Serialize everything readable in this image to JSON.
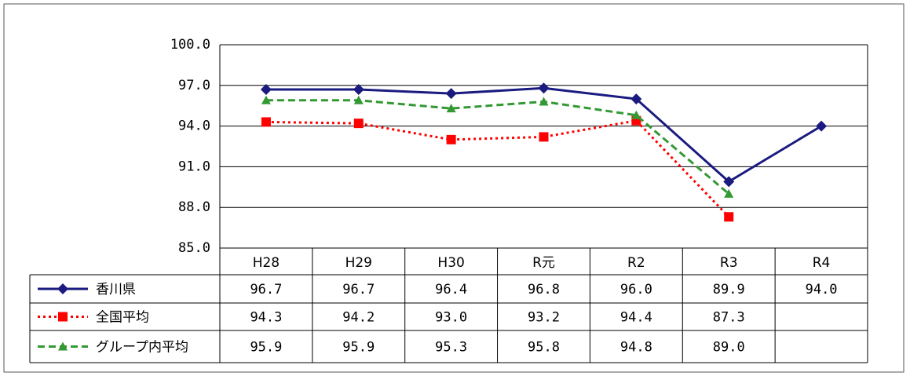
{
  "chart_data": {
    "type": "line",
    "categories": [
      "H28",
      "H29",
      "H30",
      "R元",
      "R2",
      "R3",
      "R4"
    ],
    "series": [
      {
        "name": "香川県",
        "color": "#1a1a80",
        "marker": "diamond",
        "dash": "solid",
        "values": [
          96.7,
          96.7,
          96.4,
          96.8,
          96.0,
          89.9,
          94.0
        ],
        "value_labels": [
          "96.7",
          "96.7",
          "96.4",
          "96.8",
          "96.0",
          "89.9",
          "94.0"
        ]
      },
      {
        "name": "全国平均",
        "color": "#ff0000",
        "marker": "square",
        "dash": "dotted",
        "values": [
          94.3,
          94.2,
          93.0,
          93.2,
          94.4,
          87.3,
          null
        ],
        "value_labels": [
          "94.3",
          "94.2",
          "93.0",
          "93.2",
          "94.4",
          "87.3",
          null
        ]
      },
      {
        "name": "グループ内平均",
        "color": "#339933",
        "marker": "triangle",
        "dash": "dashed",
        "values": [
          95.9,
          95.9,
          95.3,
          95.8,
          94.8,
          89.0,
          null
        ],
        "value_labels": [
          "95.9",
          "95.9",
          "95.3",
          "95.8",
          "94.8",
          "89.0",
          null
        ]
      }
    ],
    "ylim": [
      85,
      100
    ],
    "yticks": [
      {
        "value": 85,
        "label": "85.0"
      },
      {
        "value": 88,
        "label": "88.0"
      },
      {
        "value": 91,
        "label": "91.0"
      },
      {
        "value": 94,
        "label": "94.0"
      },
      {
        "value": 97,
        "label": "97.0"
      },
      {
        "value": 100,
        "label": "100.0"
      }
    ],
    "grid": true
  }
}
